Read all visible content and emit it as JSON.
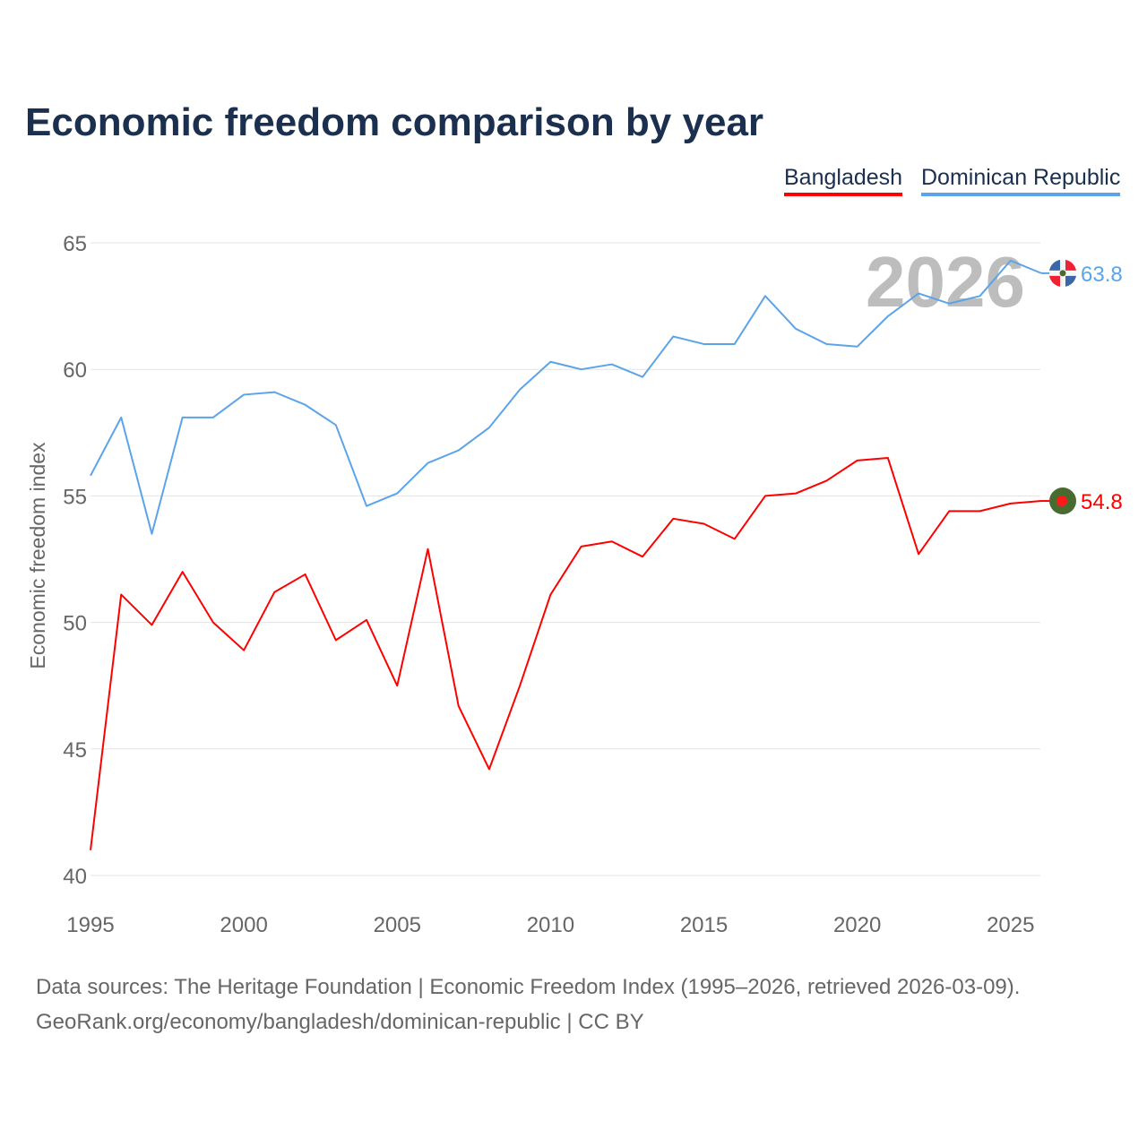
{
  "chart_data": {
    "type": "line",
    "title": "Economic freedom comparison by year",
    "xlabel": "",
    "ylabel": "Economic freedom index",
    "ylim": [
      40,
      65
    ],
    "xlim": [
      1995,
      2026
    ],
    "yticks": [
      40,
      45,
      50,
      55,
      60,
      65
    ],
    "xticks": [
      1995,
      2000,
      2005,
      2010,
      2015,
      2020,
      2025
    ],
    "grid": true,
    "legend_position": "top-right",
    "watermark_year": "2026",
    "x": [
      1995,
      1996,
      1997,
      1998,
      1999,
      2000,
      2001,
      2002,
      2003,
      2004,
      2005,
      2006,
      2007,
      2008,
      2009,
      2010,
      2011,
      2012,
      2013,
      2014,
      2015,
      2016,
      2017,
      2018,
      2019,
      2020,
      2021,
      2022,
      2023,
      2024,
      2025,
      2026
    ],
    "series": [
      {
        "name": "Bangladesh",
        "color": "#ff0000",
        "end_label": "54.8",
        "values": [
          41.0,
          51.1,
          49.9,
          52.0,
          50.0,
          48.9,
          51.2,
          51.9,
          49.3,
          50.1,
          47.5,
          52.9,
          46.7,
          44.2,
          47.5,
          51.1,
          53.0,
          53.2,
          52.6,
          54.1,
          53.9,
          53.3,
          55.0,
          55.1,
          55.6,
          56.4,
          56.5,
          52.7,
          54.4,
          54.4,
          54.7,
          54.8
        ]
      },
      {
        "name": "Dominican Republic",
        "color": "#5ba4ea",
        "end_label": "63.8",
        "values": [
          55.8,
          58.1,
          53.5,
          58.1,
          58.1,
          59.0,
          59.1,
          58.6,
          57.8,
          54.6,
          55.1,
          56.3,
          56.8,
          57.7,
          59.2,
          60.3,
          60.0,
          60.2,
          59.7,
          61.3,
          61.0,
          61.0,
          62.9,
          61.6,
          61.0,
          60.9,
          62.1,
          63.0,
          62.6,
          62.9,
          64.3,
          63.8
        ]
      }
    ]
  },
  "footer": {
    "line1": "Data sources: The Heritage Foundation | Economic Freedom Index (1995–2026, retrieved 2026-03-09).",
    "line2": "GeoRank.org/economy/bangladesh/dominican-republic | CC BY"
  }
}
